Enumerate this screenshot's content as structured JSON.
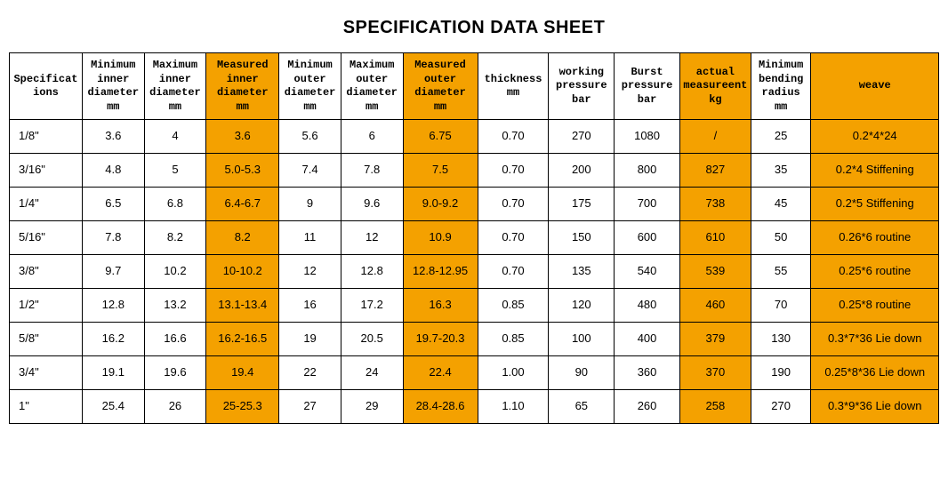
{
  "title": "SPECIFICATION DATA SHEET",
  "highlight_color": "#f4a100",
  "background_color": "#ffffff",
  "border_color": "#000000",
  "columns": [
    {
      "label": "Specifications",
      "highlight": false
    },
    {
      "label": "Minimum inner diameter mm",
      "highlight": false
    },
    {
      "label": "Maximum inner diameter mm",
      "highlight": false
    },
    {
      "label": "Measured inner diameter mm",
      "highlight": true
    },
    {
      "label": "Minimum outer diameter mm",
      "highlight": false
    },
    {
      "label": "Maximum outer diameter mm",
      "highlight": false
    },
    {
      "label": "Measured outer diameter mm",
      "highlight": true
    },
    {
      "label": "thickness mm",
      "highlight": false
    },
    {
      "label": "working pressure bar",
      "highlight": false
    },
    {
      "label": "Burst pressure bar",
      "highlight": false
    },
    {
      "label": "actual measureent kg",
      "highlight": true
    },
    {
      "label": "Minimum bending radius mm",
      "highlight": false
    },
    {
      "label": "weave",
      "highlight": true
    }
  ],
  "highlight_cols": [
    3,
    6,
    10,
    12
  ],
  "rows": [
    [
      "1/8\"",
      "3.6",
      "4",
      "3.6",
      "5.6",
      "6",
      "6.75",
      "0.70",
      "270",
      "1080",
      "/",
      "25",
      "0.2*4*24"
    ],
    [
      "3/16\"",
      "4.8",
      "5",
      "5.0-5.3",
      "7.4",
      "7.8",
      "7.5",
      "0.70",
      "200",
      "800",
      "827",
      "35",
      "0.2*4 Stiffening"
    ],
    [
      "1/4\"",
      "6.5",
      "6.8",
      "6.4-6.7",
      "9",
      "9.6",
      "9.0-9.2",
      "0.70",
      "175",
      "700",
      "738",
      "45",
      "0.2*5 Stiffening"
    ],
    [
      "5/16\"",
      "7.8",
      "8.2",
      "8.2",
      "11",
      "12",
      "10.9",
      "0.70",
      "150",
      "600",
      "610",
      "50",
      "0.26*6 routine"
    ],
    [
      "3/8\"",
      "9.7",
      "10.2",
      "10-10.2",
      "12",
      "12.8",
      "12.8-12.95",
      "0.70",
      "135",
      "540",
      "539",
      "55",
      "0.25*6 routine"
    ],
    [
      "1/2\"",
      "12.8",
      "13.2",
      "13.1-13.4",
      "16",
      "17.2",
      "16.3",
      "0.85",
      "120",
      "480",
      "460",
      "70",
      "0.25*8 routine"
    ],
    [
      "5/8\"",
      "16.2",
      "16.6",
      "16.2-16.5",
      "19",
      "20.5",
      "19.7-20.3",
      "0.85",
      "100",
      "400",
      "379",
      "130",
      "0.3*7*36 Lie down"
    ],
    [
      "3/4\"",
      "19.1",
      "19.6",
      "19.4",
      "22",
      "24",
      "22.4",
      "1.00",
      "90",
      "360",
      "370",
      "190",
      "0.25*8*36 Lie down"
    ],
    [
      "1\"",
      "25.4",
      "26",
      "25-25.3",
      "27",
      "29",
      "28.4-28.6",
      "1.10",
      "65",
      "260",
      "258",
      "270",
      "0.3*9*36 Lie down"
    ]
  ]
}
